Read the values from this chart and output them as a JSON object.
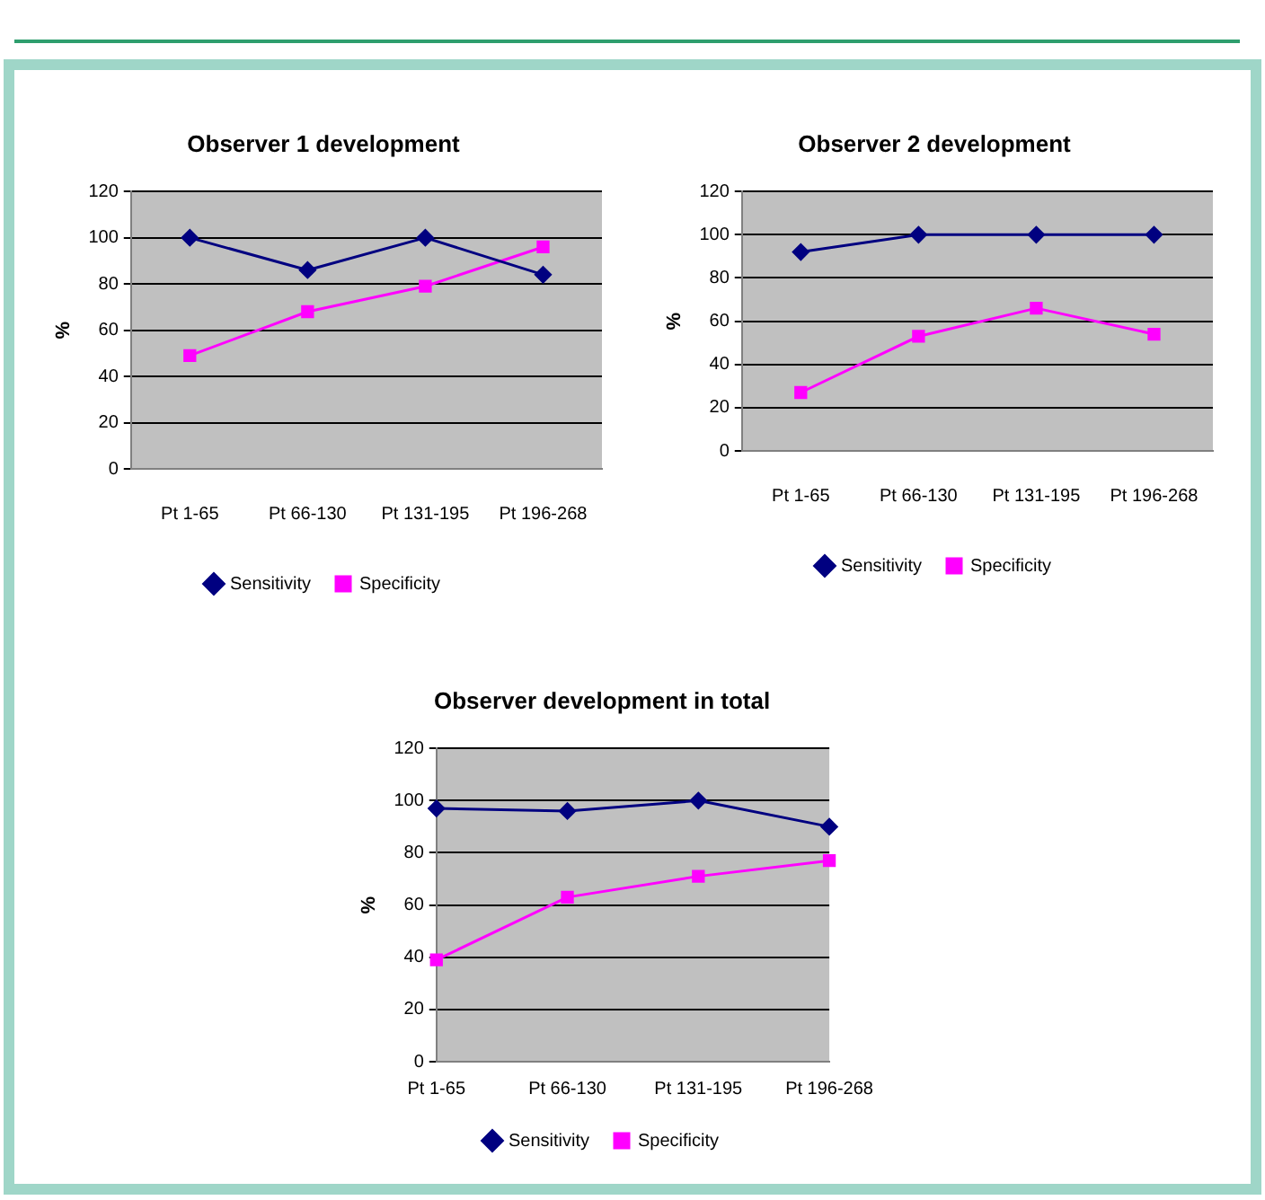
{
  "chart_data": [
    {
      "type": "line",
      "title": "Observer 1 development",
      "ylabel": "%",
      "categories": [
        "Pt 1-65",
        "Pt 66-130",
        "Pt 131-195",
        "Pt 196-268"
      ],
      "series": [
        {
          "name": "Sensitivity",
          "color": "#000080",
          "marker": "diamond",
          "values": [
            100,
            86,
            100,
            84
          ]
        },
        {
          "name": "Specificity",
          "color": "#ff00ff",
          "marker": "square",
          "values": [
            49,
            68,
            79,
            96
          ]
        }
      ],
      "ylim": [
        0,
        120
      ],
      "yticks": [
        0,
        20,
        40,
        60,
        80,
        100,
        120
      ],
      "grid": "y",
      "legend": "bottom"
    },
    {
      "type": "line",
      "title": "Observer 2 development",
      "ylabel": "%",
      "categories": [
        "Pt 1-65",
        "Pt 66-130",
        "Pt 131-195",
        "Pt 196-268"
      ],
      "series": [
        {
          "name": "Sensitivity",
          "color": "#000080",
          "marker": "diamond",
          "values": [
            92,
            100,
            100,
            100
          ]
        },
        {
          "name": "Specificity",
          "color": "#ff00ff",
          "marker": "square",
          "values": [
            27,
            53,
            66,
            54
          ]
        }
      ],
      "ylim": [
        0,
        120
      ],
      "yticks": [
        0,
        20,
        40,
        60,
        80,
        100,
        120
      ],
      "grid": "y",
      "legend": "bottom"
    },
    {
      "type": "line",
      "title": "Observer development in total",
      "ylabel": "%",
      "categories": [
        "Pt 1-65",
        "Pt 66-130",
        "Pt 131-195",
        "Pt 196-268"
      ],
      "series": [
        {
          "name": "Sensitivity",
          "color": "#000080",
          "marker": "diamond",
          "values": [
            97,
            96,
            100,
            90
          ]
        },
        {
          "name": "Specificity",
          "color": "#ff00ff",
          "marker": "square",
          "values": [
            39,
            63,
            71,
            77
          ]
        }
      ],
      "ylim": [
        0,
        120
      ],
      "yticks": [
        0,
        20,
        40,
        60,
        80,
        100,
        120
      ],
      "grid": "y",
      "legend": "bottom"
    }
  ]
}
